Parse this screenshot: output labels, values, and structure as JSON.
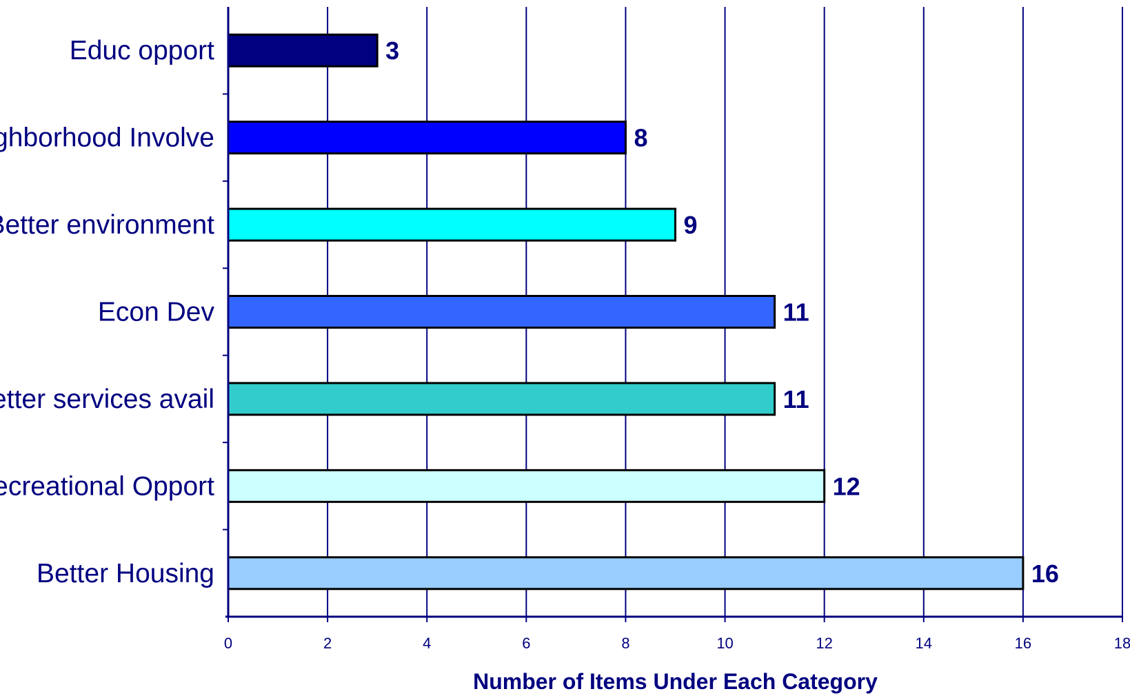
{
  "chart_data": {
    "type": "bar",
    "orientation": "horizontal",
    "categories": [
      "Educ opport",
      "Neighborhood Involve",
      "Better environment",
      "Econ Dev",
      "Better services avail",
      "Recreational Opport",
      "Better Housing"
    ],
    "values": [
      3,
      8,
      9,
      11,
      11,
      12,
      16
    ],
    "value_labels": [
      "3",
      "8",
      "9",
      "11",
      "11",
      "12",
      "16"
    ],
    "bar_colors": [
      "#000080",
      "#0000ff",
      "#00ffff",
      "#3366ff",
      "#33cccc",
      "#ccffff",
      "#99ccff"
    ],
    "xlabel": "Number of Items Under Each Category",
    "xlim": [
      0,
      18
    ],
    "xticks": [
      "0",
      "2",
      "4",
      "6",
      "8",
      "10",
      "12",
      "14",
      "16",
      "18"
    ],
    "grid": true,
    "legend": "none"
  }
}
